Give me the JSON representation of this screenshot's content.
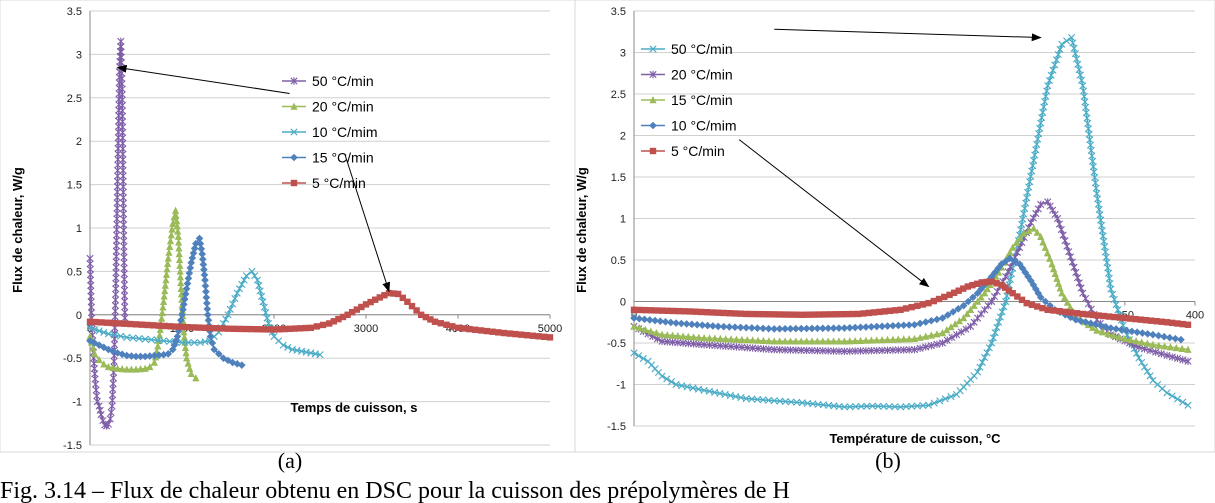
{
  "chart_data": [
    {
      "type": "line",
      "panel_label": "(a)",
      "xlabel": "Temps de cuisson, s",
      "ylabel": "Flux de chaleur, W/g",
      "xlim": [
        0,
        5000
      ],
      "ylim": [
        -1.5,
        3.5
      ],
      "xticks": [
        "0",
        "1000",
        "2000",
        "3000",
        "4000",
        "5000"
      ],
      "yticks": [
        "-1.5",
        "-1",
        "-0.5",
        "0",
        "0.5",
        "1",
        "1.5",
        "2",
        "2.5",
        "3",
        "3.5"
      ],
      "grid": "horizontal",
      "legend_position": "center",
      "annotations": [
        {
          "from": [
            2170,
            2.55
          ],
          "to": [
            300,
            2.85
          ]
        },
        {
          "from": [
            2770,
            1.85
          ],
          "to": [
            3250,
            0.27
          ]
        }
      ],
      "series": [
        {
          "name": "50 °C/min",
          "color": "#7F5FA8",
          "marker": "star",
          "points": [
            [
              0,
              0.65
            ],
            [
              20,
              -0.1
            ],
            [
              40,
              -0.5
            ],
            [
              60,
              -0.8
            ],
            [
              80,
              -1.0
            ],
            [
              100,
              -1.05
            ],
            [
              120,
              -1.15
            ],
            [
              140,
              -1.22
            ],
            [
              160,
              -1.27
            ],
            [
              180,
              -1.28
            ],
            [
              200,
              -1.26
            ],
            [
              220,
              -1.2
            ],
            [
              240,
              -1.05
            ],
            [
              260,
              -0.6
            ],
            [
              280,
              0.3
            ],
            [
              300,
              1.6
            ],
            [
              320,
              2.8
            ],
            [
              335,
              3.15
            ],
            [
              350,
              2.6
            ],
            [
              360,
              1.6
            ],
            [
              370,
              0.6
            ],
            [
              380,
              -0.1
            ]
          ]
        },
        {
          "name": "20 °C/min",
          "color": "#9BBB59",
          "marker": "triangle",
          "points": [
            [
              0,
              -0.25
            ],
            [
              50,
              -0.45
            ],
            [
              100,
              -0.52
            ],
            [
              150,
              -0.57
            ],
            [
              200,
              -0.6
            ],
            [
              300,
              -0.62
            ],
            [
              400,
              -0.63
            ],
            [
              500,
              -0.63
            ],
            [
              600,
              -0.62
            ],
            [
              650,
              -0.6
            ],
            [
              700,
              -0.55
            ],
            [
              750,
              -0.3
            ],
            [
              800,
              0.15
            ],
            [
              850,
              0.65
            ],
            [
              900,
              1.05
            ],
            [
              930,
              1.2
            ],
            [
              960,
              0.9
            ],
            [
              990,
              0.3
            ],
            [
              1020,
              -0.2
            ],
            [
              1050,
              -0.5
            ],
            [
              1100,
              -0.68
            ],
            [
              1150,
              -0.73
            ]
          ]
        },
        {
          "name": "10 °C/mim",
          "color": "#4BACC6",
          "marker": "x",
          "points": [
            [
              0,
              -0.15
            ],
            [
              200,
              -0.22
            ],
            [
              400,
              -0.26
            ],
            [
              600,
              -0.28
            ],
            [
              800,
              -0.3
            ],
            [
              1000,
              -0.32
            ],
            [
              1200,
              -0.32
            ],
            [
              1300,
              -0.3
            ],
            [
              1400,
              -0.2
            ],
            [
              1500,
              0.0
            ],
            [
              1600,
              0.25
            ],
            [
              1700,
              0.45
            ],
            [
              1760,
              0.5
            ],
            [
              1820,
              0.4
            ],
            [
              1880,
              0.15
            ],
            [
              1940,
              -0.1
            ],
            [
              2000,
              -0.25
            ],
            [
              2100,
              -0.35
            ],
            [
              2200,
              -0.4
            ],
            [
              2350,
              -0.43
            ],
            [
              2500,
              -0.46
            ]
          ]
        },
        {
          "name": "15 °C/min",
          "color": "#4F81BD",
          "marker": "diamond",
          "points": [
            [
              0,
              -0.3
            ],
            [
              100,
              -0.35
            ],
            [
              200,
              -0.4
            ],
            [
              300,
              -0.44
            ],
            [
              400,
              -0.47
            ],
            [
              500,
              -0.48
            ],
            [
              600,
              -0.48
            ],
            [
              700,
              -0.47
            ],
            [
              800,
              -0.46
            ],
            [
              850,
              -0.45
            ],
            [
              900,
              -0.4
            ],
            [
              950,
              -0.25
            ],
            [
              1000,
              0.0
            ],
            [
              1050,
              0.3
            ],
            [
              1100,
              0.6
            ],
            [
              1150,
              0.82
            ],
            [
              1190,
              0.88
            ],
            [
              1220,
              0.7
            ],
            [
              1250,
              0.4
            ],
            [
              1280,
              0.0
            ],
            [
              1310,
              -0.25
            ],
            [
              1350,
              -0.4
            ],
            [
              1450,
              -0.5
            ],
            [
              1550,
              -0.55
            ],
            [
              1650,
              -0.58
            ]
          ]
        },
        {
          "name": "5 °C/min",
          "color": "#C0504D",
          "marker": "square",
          "points": [
            [
              0,
              -0.08
            ],
            [
              500,
              -0.11
            ],
            [
              1000,
              -0.14
            ],
            [
              1500,
              -0.16
            ],
            [
              2000,
              -0.17
            ],
            [
              2400,
              -0.15
            ],
            [
              2600,
              -0.1
            ],
            [
              2800,
              0.0
            ],
            [
              3000,
              0.12
            ],
            [
              3150,
              0.2
            ],
            [
              3250,
              0.25
            ],
            [
              3350,
              0.24
            ],
            [
              3450,
              0.15
            ],
            [
              3600,
              0.0
            ],
            [
              3750,
              -0.08
            ],
            [
              4000,
              -0.15
            ],
            [
              4500,
              -0.21
            ],
            [
              5000,
              -0.26
            ]
          ]
        }
      ]
    },
    {
      "type": "line",
      "panel_label": "(b)",
      "xlabel": "Température de cuisson, °C",
      "ylabel": "Flux de chaleur, W/g",
      "xlim": [
        0,
        400
      ],
      "ylim": [
        -1.5,
        3.5
      ],
      "xticks": [
        "0",
        "350",
        "400"
      ],
      "yticks": [
        "-1.5",
        "-1",
        "-0.5",
        "0",
        "0.5",
        "1",
        "1.5",
        "2",
        "2.5",
        "3",
        "3.5"
      ],
      "grid": "horizontal",
      "legend_position": "top-left",
      "annotations": [
        {
          "from": [
            100,
            3.28
          ],
          "to": [
            290,
            3.18
          ]
        },
        {
          "from": [
            75,
            1.95
          ],
          "to": [
            210,
            0.18
          ]
        }
      ],
      "series": [
        {
          "name": "50 °C/min",
          "color": "#4BACC6",
          "marker": "x",
          "points": [
            [
              0,
              -0.62
            ],
            [
              10,
              -0.72
            ],
            [
              20,
              -0.9
            ],
            [
              30,
              -1.0
            ],
            [
              50,
              -1.07
            ],
            [
              80,
              -1.17
            ],
            [
              120,
              -1.22
            ],
            [
              150,
              -1.27
            ],
            [
              170,
              -1.26
            ],
            [
              190,
              -1.27
            ],
            [
              210,
              -1.25
            ],
            [
              230,
              -1.12
            ],
            [
              245,
              -0.85
            ],
            [
              255,
              -0.5
            ],
            [
              265,
              0.0
            ],
            [
              275,
              0.8
            ],
            [
              285,
              1.7
            ],
            [
              295,
              2.6
            ],
            [
              305,
              3.1
            ],
            [
              312,
              3.18
            ],
            [
              320,
              2.6
            ],
            [
              330,
              1.3
            ],
            [
              340,
              0.15
            ],
            [
              350,
              -0.35
            ],
            [
              360,
              -0.68
            ],
            [
              370,
              -0.95
            ],
            [
              380,
              -1.1
            ],
            [
              395,
              -1.25
            ]
          ]
        },
        {
          "name": "20 °C/min",
          "color": "#7F5FA8",
          "marker": "star",
          "points": [
            [
              0,
              -0.3
            ],
            [
              20,
              -0.48
            ],
            [
              50,
              -0.52
            ],
            [
              100,
              -0.58
            ],
            [
              150,
              -0.6
            ],
            [
              200,
              -0.58
            ],
            [
              220,
              -0.5
            ],
            [
              240,
              -0.3
            ],
            [
              255,
              0.0
            ],
            [
              265,
              0.3
            ],
            [
              275,
              0.65
            ],
            [
              283,
              0.95
            ],
            [
              290,
              1.17
            ],
            [
              295,
              1.2
            ],
            [
              302,
              1.0
            ],
            [
              310,
              0.6
            ],
            [
              320,
              0.1
            ],
            [
              330,
              -0.22
            ],
            [
              340,
              -0.4
            ],
            [
              360,
              -0.55
            ],
            [
              380,
              -0.65
            ],
            [
              395,
              -0.72
            ]
          ]
        },
        {
          "name": "15 °C/min",
          "color": "#9BBB59",
          "marker": "triangle",
          "points": [
            [
              0,
              -0.3
            ],
            [
              20,
              -0.4
            ],
            [
              50,
              -0.44
            ],
            [
              100,
              -0.48
            ],
            [
              150,
              -0.48
            ],
            [
              200,
              -0.45
            ],
            [
              220,
              -0.38
            ],
            [
              235,
              -0.2
            ],
            [
              250,
              0.1
            ],
            [
              260,
              0.35
            ],
            [
              270,
              0.65
            ],
            [
              278,
              0.82
            ],
            [
              285,
              0.88
            ],
            [
              290,
              0.78
            ],
            [
              298,
              0.45
            ],
            [
              305,
              0.1
            ],
            [
              315,
              -0.18
            ],
            [
              330,
              -0.35
            ],
            [
              350,
              -0.45
            ],
            [
              370,
              -0.52
            ],
            [
              395,
              -0.58
            ]
          ]
        },
        {
          "name": "10 °C/mim",
          "color": "#4F81BD",
          "marker": "diamond",
          "points": [
            [
              0,
              -0.2
            ],
            [
              30,
              -0.26
            ],
            [
              60,
              -0.3
            ],
            [
              100,
              -0.33
            ],
            [
              150,
              -0.32
            ],
            [
              200,
              -0.28
            ],
            [
              220,
              -0.2
            ],
            [
              235,
              -0.05
            ],
            [
              245,
              0.1
            ],
            [
              255,
              0.3
            ],
            [
              262,
              0.45
            ],
            [
              268,
              0.52
            ],
            [
              275,
              0.45
            ],
            [
              283,
              0.25
            ],
            [
              290,
              0.05
            ],
            [
              300,
              -0.1
            ],
            [
              315,
              -0.22
            ],
            [
              340,
              -0.32
            ],
            [
              370,
              -0.4
            ],
            [
              390,
              -0.46
            ]
          ]
        },
        {
          "name": "5 °C/min",
          "color": "#C0504D",
          "marker": "square",
          "points": [
            [
              0,
              -0.1
            ],
            [
              40,
              -0.12
            ],
            [
              80,
              -0.15
            ],
            [
              120,
              -0.16
            ],
            [
              160,
              -0.15
            ],
            [
              190,
              -0.1
            ],
            [
              210,
              -0.02
            ],
            [
              225,
              0.08
            ],
            [
              238,
              0.18
            ],
            [
              248,
              0.23
            ],
            [
              255,
              0.24
            ],
            [
              262,
              0.2
            ],
            [
              270,
              0.1
            ],
            [
              280,
              -0.02
            ],
            [
              295,
              -0.1
            ],
            [
              320,
              -0.15
            ],
            [
              350,
              -0.2
            ],
            [
              380,
              -0.25
            ],
            [
              395,
              -0.28
            ]
          ]
        }
      ]
    }
  ],
  "caption": "Fig. 3.14 – Flux de chaleur obtenu en DSC pour la cuisson des prépolymères de H"
}
